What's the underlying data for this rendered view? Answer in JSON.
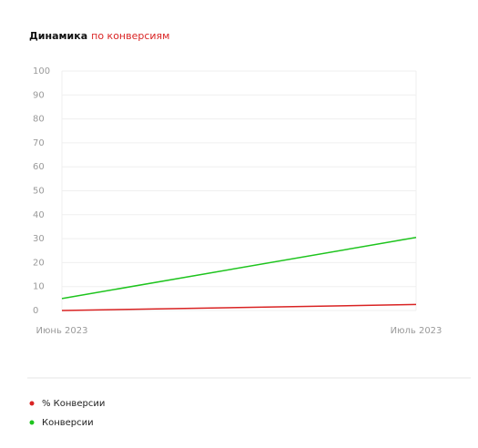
{
  "chart_data": {
    "type": "line",
    "title": [
      "Динамика",
      "по конверсиям"
    ],
    "categories": [
      "Июнь 2023",
      "Июль 2023"
    ],
    "series": [
      {
        "name": "% Конверсии",
        "color": "#d92323",
        "values": [
          0,
          2.5
        ]
      },
      {
        "name": "Конверсии",
        "color": "#1ec41e",
        "values": [
          5,
          30.5
        ]
      }
    ],
    "ylim": [
      0,
      100
    ],
    "yticks": [
      0,
      10,
      20,
      30,
      40,
      50,
      60,
      70,
      80,
      90,
      100
    ],
    "grid": true
  }
}
